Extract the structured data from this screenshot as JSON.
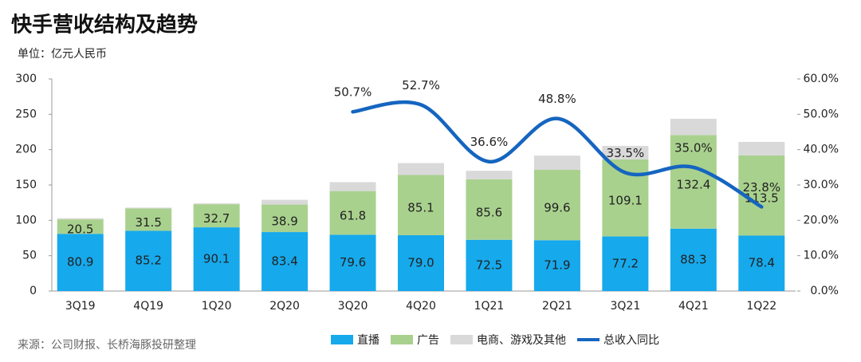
{
  "chart_data": {
    "type": "bar",
    "stacked": true,
    "title": "快手营收结构及趋势",
    "subtitle": "单位：亿元人民币",
    "source": "来源：公司财报、长桥海豚投研整理",
    "categories": [
      "3Q19",
      "4Q19",
      "1Q20",
      "2Q20",
      "3Q20",
      "4Q20",
      "1Q21",
      "2Q21",
      "3Q21",
      "4Q21",
      "1Q22"
    ],
    "series": [
      {
        "name": "直播",
        "color": "#16a9ec",
        "values": [
          80.9,
          85.2,
          90.1,
          83.4,
          79.6,
          79.0,
          72.5,
          71.9,
          77.2,
          88.3,
          78.4
        ],
        "value_labels": [
          "80.9",
          "85.2",
          "90.1",
          "83.4",
          "79.6",
          "79.0",
          "72.5",
          "71.9",
          "77.2",
          "88.3",
          "78.4"
        ]
      },
      {
        "name": "广告",
        "color": "#a9d18e",
        "values": [
          20.5,
          31.5,
          32.7,
          38.9,
          61.8,
          85.1,
          85.6,
          99.6,
          109.1,
          132.4,
          113.5
        ]
      },
      {
        "name": "电商、游戏及其他",
        "color": "#d9d9d9",
        "values": [
          1.6,
          1.3,
          1.2,
          6.7,
          12.6,
          16.9,
          12,
          20,
          19,
          23,
          19
        ]
      },
      {
        "name": "总收入同比",
        "type": "line",
        "axis": "y2",
        "color": "#1565c0",
        "values": [
          null,
          null,
          null,
          null,
          50.7,
          52.7,
          36.6,
          48.8,
          33.5,
          35.0,
          23.8
        ],
        "value_labels": [
          null,
          null,
          null,
          null,
          "50.7%",
          "52.7%",
          "36.6%",
          "48.8%",
          "33.5%",
          "35.0%",
          "23.8%"
        ]
      }
    ],
    "ylim": [
      0,
      300
    ],
    "yticks": [
      0,
      50,
      100,
      150,
      200,
      250,
      300
    ],
    "y2lim": [
      0,
      60
    ],
    "y2ticks": [
      {
        "value": 0,
        "label": "0.0%"
      },
      {
        "value": 10,
        "label": "10.0%"
      },
      {
        "value": 20,
        "label": "20.0%"
      },
      {
        "value": 30,
        "label": "30.0%"
      },
      {
        "value": 40,
        "label": "40.0%"
      },
      {
        "value": 50,
        "label": "50.0%"
      },
      {
        "value": 60,
        "label": "60.0%"
      }
    ]
  }
}
